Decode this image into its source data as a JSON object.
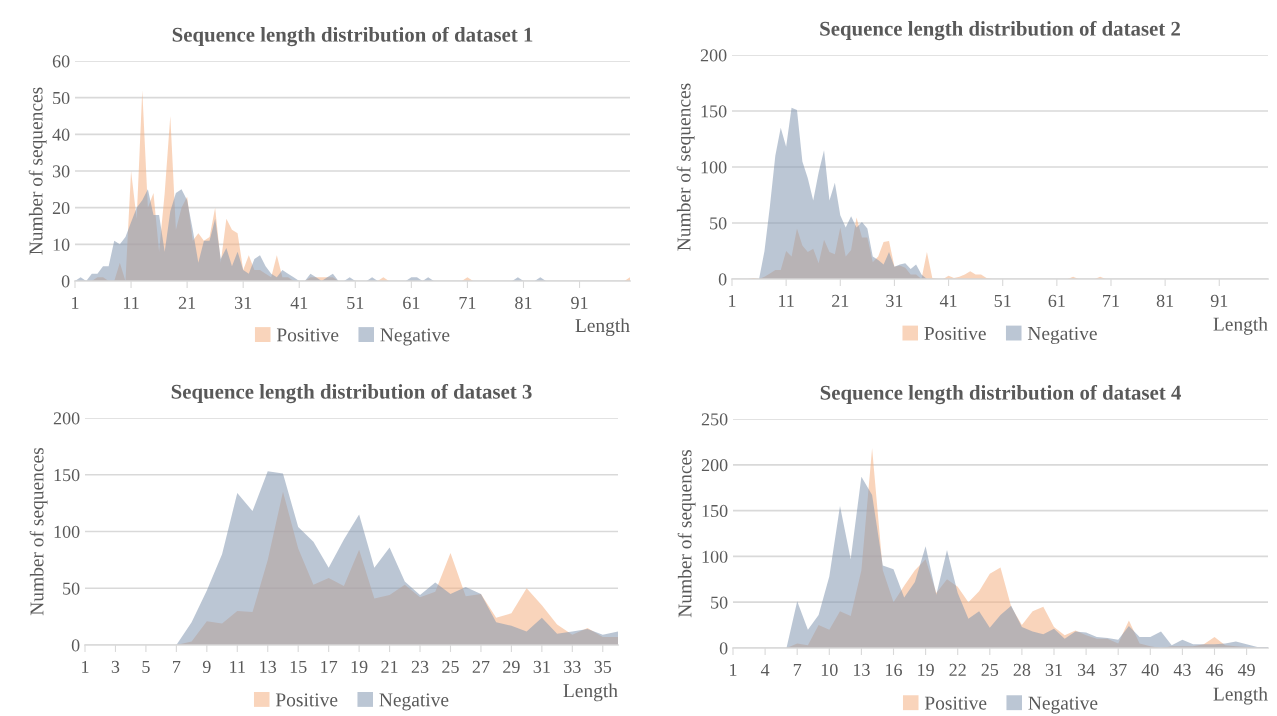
{
  "chart_data": [
    {
      "type": "area",
      "title": "Sequence length distribution of dataset 1",
      "xlabel": "Length",
      "ylabel": "Number of sequences",
      "categories": [
        "1",
        null,
        null,
        null,
        null,
        null,
        null,
        null,
        null,
        null,
        "11",
        null,
        null,
        null,
        null,
        null,
        null,
        null,
        null,
        null,
        "21",
        null,
        null,
        null,
        null,
        null,
        null,
        null,
        null,
        null,
        "31",
        null,
        null,
        null,
        null,
        null,
        null,
        null,
        null,
        null,
        "41",
        null,
        null,
        null,
        null,
        null,
        null,
        null,
        null,
        null,
        "51",
        null,
        null,
        null,
        null,
        null,
        null,
        null,
        null,
        null,
        "61",
        null,
        null,
        null,
        null,
        null,
        null,
        null,
        null,
        null,
        "71",
        null,
        null,
        null,
        null,
        null,
        null,
        null,
        null,
        null,
        "81",
        null,
        null,
        null,
        null,
        null,
        null,
        null,
        null,
        null,
        "91",
        null,
        null,
        null,
        null,
        null,
        null,
        null,
        null,
        null
      ],
      "series": [
        {
          "name": "Positive",
          "color": "#f4b183",
          "values": [
            0,
            0,
            0,
            0,
            1,
            1,
            0,
            0,
            5,
            0,
            30,
            17,
            52,
            20,
            24,
            8,
            24,
            45,
            14,
            20,
            23,
            11,
            13,
            11,
            12,
            20,
            5,
            17,
            14,
            13,
            3,
            7,
            3,
            3,
            2,
            1,
            7,
            1,
            1,
            0,
            0,
            0,
            1,
            1,
            1,
            1,
            1,
            0,
            0,
            0,
            0,
            0,
            0,
            0,
            0,
            1,
            0,
            0,
            0,
            0,
            0,
            0,
            0,
            0,
            0,
            0,
            0,
            0,
            0,
            0,
            1,
            0,
            0,
            0,
            0,
            0,
            0,
            0,
            0,
            0,
            0,
            0,
            0,
            0,
            0,
            0,
            0,
            0,
            0,
            0,
            0,
            0,
            0,
            0,
            0,
            0,
            0,
            0,
            0,
            1
          ]
        },
        {
          "name": "Negative",
          "color": "#8497b0",
          "values": [
            0,
            1,
            0,
            2,
            2,
            4,
            4,
            11,
            10,
            12,
            16,
            20,
            22,
            25,
            18,
            18,
            8,
            19,
            24,
            25,
            22,
            14,
            5,
            11,
            11,
            17,
            6,
            9,
            4,
            8,
            3,
            2,
            6,
            7,
            4,
            2,
            1,
            3,
            2,
            1,
            0,
            0,
            2,
            1,
            0,
            1,
            2,
            0,
            0,
            1,
            0,
            0,
            0,
            1,
            0,
            0,
            0,
            0,
            0,
            0,
            1,
            1,
            0,
            1,
            0,
            0,
            0,
            0,
            0,
            0,
            0,
            0,
            0,
            0,
            0,
            0,
            0,
            0,
            0,
            1,
            0,
            0,
            0,
            1,
            0,
            0,
            0,
            0,
            0,
            0,
            0,
            0,
            0,
            0,
            0,
            0,
            0,
            0,
            0,
            0
          ]
        }
      ],
      "ylim": [
        0,
        60
      ],
      "yticks": [
        0,
        10,
        20,
        30,
        40,
        50,
        60
      ],
      "grid": "y",
      "legend": "bottom"
    },
    {
      "type": "area",
      "title": "Sequence length distribution of dataset 2",
      "xlabel": "Length",
      "ylabel": "Number of sequences",
      "categories": [
        "1",
        null,
        null,
        null,
        null,
        null,
        null,
        null,
        null,
        null,
        "11",
        null,
        null,
        null,
        null,
        null,
        null,
        null,
        null,
        null,
        "21",
        null,
        null,
        null,
        null,
        null,
        null,
        null,
        null,
        null,
        "31",
        null,
        null,
        null,
        null,
        null,
        null,
        null,
        null,
        null,
        "41",
        null,
        null,
        null,
        null,
        null,
        null,
        null,
        null,
        null,
        "51",
        null,
        null,
        null,
        null,
        null,
        null,
        null,
        null,
        null,
        "61",
        null,
        null,
        null,
        null,
        null,
        null,
        null,
        null,
        null,
        "71",
        null,
        null,
        null,
        null,
        null,
        null,
        null,
        null,
        null,
        "81",
        null,
        null,
        null,
        null,
        null,
        null,
        null,
        null,
        null,
        "91",
        null,
        null,
        null,
        null,
        null,
        null,
        null,
        null,
        null
      ],
      "series": [
        {
          "name": "Positive",
          "color": "#f4b183",
          "values": [
            0,
            0,
            0,
            0,
            1,
            0,
            2,
            5,
            8,
            8,
            25,
            20,
            45,
            30,
            24,
            27,
            14,
            35,
            24,
            22,
            46,
            20,
            26,
            55,
            37,
            37,
            15,
            20,
            33,
            34,
            11,
            12,
            10,
            4,
            4,
            0,
            24,
            1,
            0,
            0,
            3,
            1,
            2,
            4,
            7,
            4,
            4,
            1,
            0,
            0,
            0,
            0,
            0,
            0,
            0,
            0,
            0,
            0,
            0,
            0,
            0,
            0,
            0,
            2,
            0,
            0,
            0,
            0,
            2,
            0,
            0,
            0,
            0,
            0,
            0,
            0,
            0,
            0,
            0,
            0,
            0,
            0,
            0,
            0,
            0,
            0,
            0,
            0,
            0,
            0,
            0,
            0,
            0,
            0,
            0,
            0,
            0,
            0,
            0,
            0
          ]
        },
        {
          "name": "Negative",
          "color": "#8497b0",
          "values": [
            0,
            0,
            0,
            0,
            0,
            0,
            25,
            65,
            110,
            135,
            118,
            153,
            151,
            105,
            90,
            70,
            95,
            115,
            70,
            86,
            57,
            46,
            56,
            46,
            51,
            45,
            20,
            17,
            13,
            24,
            11,
            13,
            14,
            9,
            13,
            4,
            0,
            0,
            0,
            0,
            0,
            0,
            0,
            0,
            0,
            0,
            0,
            0,
            0,
            0,
            0,
            0,
            0,
            0,
            0,
            0,
            0,
            0,
            0,
            0,
            0,
            0,
            0,
            0,
            0,
            0,
            0,
            0,
            0,
            0,
            0,
            0,
            0,
            0,
            0,
            0,
            0,
            0,
            0,
            0,
            0,
            0,
            0,
            0,
            0,
            0,
            0,
            0,
            0,
            0,
            0,
            0,
            0,
            0,
            0,
            0,
            0,
            0,
            0,
            0
          ]
        }
      ],
      "ylim": [
        0,
        200
      ],
      "yticks": [
        0,
        50,
        100,
        150,
        200
      ],
      "grid": "y",
      "legend": "bottom"
    },
    {
      "type": "area",
      "title": "Sequence length distribution of dataset 3",
      "xlabel": "Length",
      "ylabel": "Number of sequences",
      "categories": [
        "1",
        null,
        "3",
        null,
        "5",
        null,
        "7",
        null,
        "9",
        null,
        "11",
        null,
        "13",
        null,
        "15",
        null,
        "17",
        null,
        "19",
        null,
        "21",
        null,
        "23",
        null,
        "25",
        null,
        "27",
        null,
        "29",
        null,
        "31",
        null,
        "33",
        null,
        "35",
        null
      ],
      "series": [
        {
          "name": "Positive",
          "color": "#f4b183",
          "values": [
            0,
            0,
            0,
            0,
            0,
            0,
            0,
            3,
            21,
            19,
            30,
            29,
            75,
            135,
            85,
            53,
            59,
            52,
            84,
            41,
            44,
            53,
            42,
            47,
            81,
            43,
            45,
            24,
            28,
            50,
            35,
            18,
            9,
            15,
            7,
            7
          ]
        },
        {
          "name": "Negative",
          "color": "#8497b0",
          "values": [
            0,
            0,
            0,
            0,
            0,
            0,
            0,
            20,
            48,
            80,
            134,
            118,
            153,
            151,
            104,
            91,
            68,
            93,
            115,
            68,
            86,
            56,
            44,
            55,
            45,
            51,
            45,
            20,
            17,
            12,
            24,
            10,
            12,
            14,
            9,
            12
          ]
        }
      ],
      "ylim": [
        0,
        200
      ],
      "yticks": [
        0,
        50,
        100,
        150,
        200
      ],
      "grid": "y",
      "legend": "bottom"
    },
    {
      "type": "area",
      "title": "Sequence length distribution of dataset 4",
      "xlabel": "Length",
      "ylabel": "Number of sequences",
      "categories": [
        "1",
        null,
        null,
        "4",
        null,
        null,
        "7",
        null,
        null,
        "10",
        null,
        null,
        "13",
        null,
        null,
        "16",
        null,
        null,
        "19",
        null,
        null,
        "22",
        null,
        null,
        "25",
        null,
        null,
        "28",
        null,
        null,
        "31",
        null,
        null,
        "34",
        null,
        null,
        "37",
        null,
        null,
        "40",
        null,
        null,
        "43",
        null,
        null,
        "46",
        null,
        null,
        "49",
        null,
        null
      ],
      "series": [
        {
          "name": "Positive",
          "color": "#f4b183",
          "values": [
            0,
            0,
            0,
            0,
            0,
            0,
            5,
            3,
            25,
            20,
            40,
            35,
            85,
            218,
            85,
            50,
            68,
            85,
            97,
            60,
            75,
            67,
            50,
            62,
            81,
            88,
            45,
            25,
            40,
            45,
            23,
            14,
            19,
            14,
            10,
            10,
            5,
            30,
            5,
            2,
            0,
            2,
            2,
            2,
            4,
            12,
            3,
            2,
            1,
            0,
            0
          ]
        },
        {
          "name": "Negative",
          "color": "#8497b0",
          "values": [
            0,
            0,
            0,
            0,
            0,
            0,
            51,
            20,
            36,
            78,
            155,
            97,
            187,
            167,
            90,
            86,
            55,
            72,
            111,
            58,
            107,
            60,
            32,
            40,
            22,
            36,
            46,
            23,
            18,
            15,
            21,
            10,
            18,
            17,
            12,
            11,
            9,
            24,
            12,
            12,
            18,
            3,
            9,
            4,
            4,
            4,
            5,
            7,
            4,
            1,
            1
          ]
        }
      ],
      "ylim": [
        0,
        250
      ],
      "yticks": [
        0,
        50,
        100,
        150,
        200,
        250
      ],
      "grid": "y",
      "legend": "bottom"
    }
  ]
}
